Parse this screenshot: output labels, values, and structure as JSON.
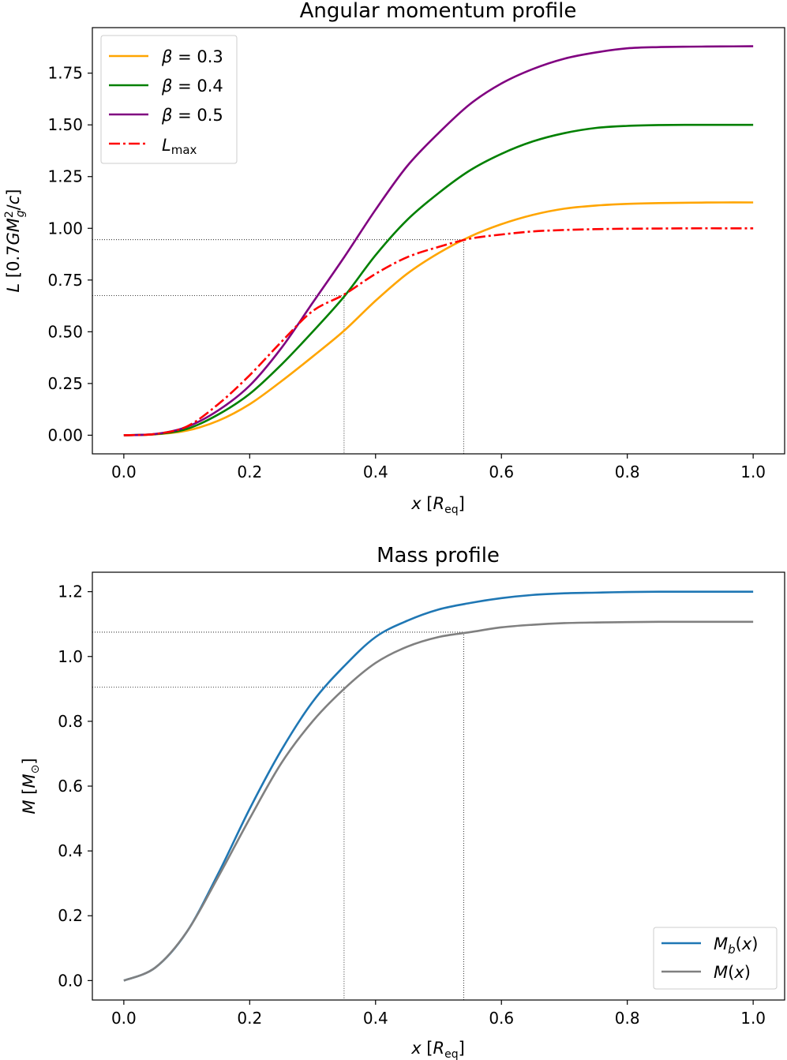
{
  "chart_data": [
    {
      "type": "line",
      "title": "Angular momentum profile",
      "xlabel": "x [R_eq]",
      "ylabel": "L [0.7GM_g^2/c]",
      "xlim": [
        -0.05,
        1.05
      ],
      "ylim": [
        -0.09,
        1.97
      ],
      "xticks": [
        0.0,
        0.2,
        0.4,
        0.6,
        0.8,
        1.0
      ],
      "yticks": [
        0.0,
        0.25,
        0.5,
        0.75,
        1.0,
        1.25,
        1.5,
        1.75
      ],
      "xtick_labels": [
        "0.0",
        "0.2",
        "0.4",
        "0.6",
        "0.8",
        "1.0"
      ],
      "ytick_labels": [
        "0.00",
        "0.25",
        "0.50",
        "0.75",
        "1.00",
        "1.25",
        "1.50",
        "1.75"
      ],
      "grid": false,
      "legend_position": "top-left",
      "x": [
        0,
        0.05,
        0.1,
        0.15,
        0.2,
        0.25,
        0.3,
        0.35,
        0.4,
        0.45,
        0.5,
        0.55,
        0.6,
        0.65,
        0.7,
        0.75,
        0.8,
        0.85,
        0.9,
        0.95,
        1.0
      ],
      "series": [
        {
          "name": "β = 0.3",
          "color": "#FFA500",
          "style": "solid",
          "values": [
            0,
            0.004,
            0.022,
            0.07,
            0.15,
            0.26,
            0.38,
            0.505,
            0.65,
            0.78,
            0.88,
            0.96,
            1.02,
            1.065,
            1.095,
            1.11,
            1.118,
            1.122,
            1.124,
            1.125,
            1.125
          ]
        },
        {
          "name": "β = 0.4",
          "color": "#008000",
          "style": "solid",
          "values": [
            0,
            0.005,
            0.03,
            0.1,
            0.2,
            0.34,
            0.5,
            0.67,
            0.87,
            1.04,
            1.17,
            1.28,
            1.36,
            1.42,
            1.46,
            1.485,
            1.495,
            1.499,
            1.5,
            1.5,
            1.5
          ]
        },
        {
          "name": "β = 0.5",
          "color": "#800080",
          "style": "solid",
          "values": [
            0,
            0.006,
            0.04,
            0.12,
            0.24,
            0.42,
            0.64,
            0.86,
            1.09,
            1.3,
            1.46,
            1.6,
            1.7,
            1.77,
            1.82,
            1.85,
            1.87,
            1.876,
            1.878,
            1.879,
            1.88
          ]
        },
        {
          "name": "L_max",
          "color": "#FF0000",
          "style": "dashdot",
          "values": [
            0,
            0.006,
            0.042,
            0.15,
            0.29,
            0.45,
            0.6,
            0.68,
            0.78,
            0.86,
            0.91,
            0.95,
            0.97,
            0.985,
            0.992,
            0.996,
            0.998,
            0.999,
            1.0,
            1.0,
            1.0
          ]
        }
      ],
      "guides": [
        {
          "x": 0.35,
          "y": 0.675
        },
        {
          "x": 0.54,
          "y": 0.945
        }
      ]
    },
    {
      "type": "line",
      "title": "Mass profile",
      "xlabel": "x [R_eq]",
      "ylabel": "M [M_⊙]",
      "xlim": [
        -0.05,
        1.05
      ],
      "ylim": [
        -0.06,
        1.26
      ],
      "xticks": [
        0.0,
        0.2,
        0.4,
        0.6,
        0.8,
        1.0
      ],
      "yticks": [
        0.0,
        0.2,
        0.4,
        0.6,
        0.8,
        1.0,
        1.2
      ],
      "xtick_labels": [
        "0.0",
        "0.2",
        "0.4",
        "0.6",
        "0.8",
        "1.0"
      ],
      "ytick_labels": [
        "0.0",
        "0.2",
        "0.4",
        "0.6",
        "0.8",
        "1.0",
        "1.2"
      ],
      "grid": false,
      "legend_position": "bottom-right",
      "x": [
        0,
        0.05,
        0.1,
        0.15,
        0.2,
        0.25,
        0.3,
        0.35,
        0.4,
        0.45,
        0.5,
        0.55,
        0.6,
        0.65,
        0.7,
        0.75,
        0.8,
        0.85,
        0.9,
        0.95,
        1.0
      ],
      "series": [
        {
          "name": "M_b(x)",
          "color": "#1F77B4",
          "style": "solid",
          "values": [
            0,
            0.04,
            0.15,
            0.33,
            0.53,
            0.71,
            0.86,
            0.97,
            1.06,
            1.11,
            1.145,
            1.165,
            1.18,
            1.19,
            1.195,
            1.197,
            1.199,
            1.2,
            1.2,
            1.2,
            1.2
          ]
        },
        {
          "name": "M(x)",
          "color": "#808080",
          "style": "solid",
          "values": [
            0,
            0.04,
            0.15,
            0.32,
            0.5,
            0.67,
            0.8,
            0.9,
            0.98,
            1.03,
            1.06,
            1.075,
            1.09,
            1.098,
            1.103,
            1.105,
            1.106,
            1.107,
            1.107,
            1.107,
            1.107
          ]
        }
      ],
      "guides": [
        {
          "x": 0.35,
          "y": 0.905
        },
        {
          "x": 0.54,
          "y": 1.075
        }
      ]
    }
  ]
}
